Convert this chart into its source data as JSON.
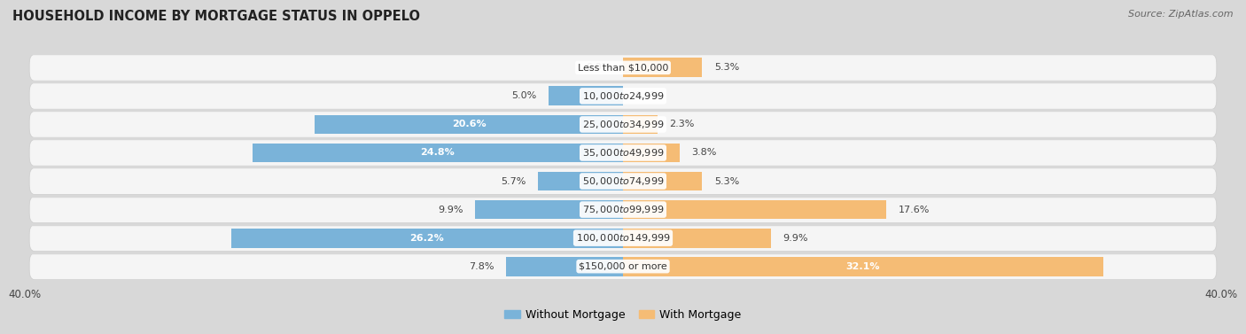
{
  "title": "HOUSEHOLD INCOME BY MORTGAGE STATUS IN OPPELO",
  "source": "Source: ZipAtlas.com",
  "categories": [
    "Less than $10,000",
    "$10,000 to $24,999",
    "$25,000 to $34,999",
    "$35,000 to $49,999",
    "$50,000 to $74,999",
    "$75,000 to $99,999",
    "$100,000 to $149,999",
    "$150,000 or more"
  ],
  "without_mortgage": [
    0.0,
    5.0,
    20.6,
    24.8,
    5.7,
    9.9,
    26.2,
    7.8
  ],
  "with_mortgage": [
    5.3,
    0.0,
    2.3,
    3.8,
    5.3,
    17.6,
    9.9,
    32.1
  ],
  "color_without": "#7ab3d9",
  "color_with": "#f5bc75",
  "axis_max": 40.0,
  "bg_outer": "#d8d8d8",
  "row_bg_light": "#f5f5f5",
  "row_bg_dark": "#e8e8e8",
  "title_fontsize": 10.5,
  "label_fontsize": 8,
  "bar_label_fontsize": 8,
  "legend_fontsize": 9,
  "source_fontsize": 8
}
